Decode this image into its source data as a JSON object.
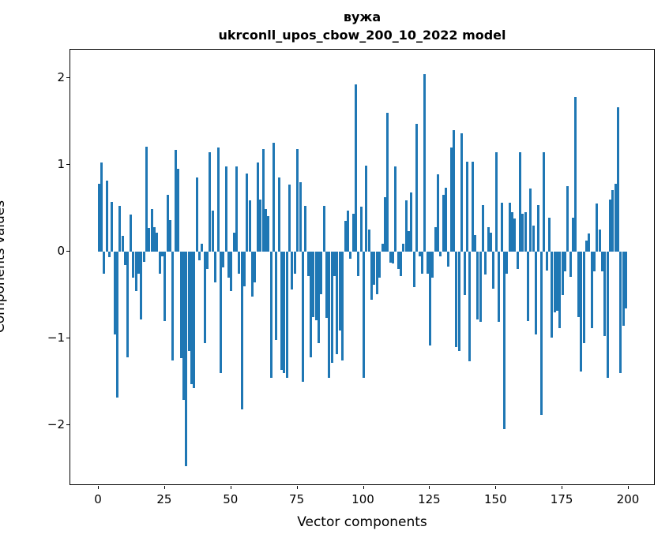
{
  "title": {
    "line1": "вужа",
    "line2": "ukrconll_upos_cbow_200_10_2022 model"
  },
  "chart_data": {
    "type": "bar",
    "title": "вужа",
    "subtitle": "ukrconll_upos_cbow_200_10_2022 model",
    "xlabel": "Vector components",
    "ylabel": "Components values",
    "bar_color": "#1f77b4",
    "xlim": [
      -10.7,
      209.7
    ],
    "ylim": [
      -2.7,
      2.33
    ],
    "xticks": [
      0,
      25,
      50,
      75,
      100,
      125,
      150,
      175,
      200
    ],
    "yticks": [
      "2",
      "1",
      "0",
      "−1",
      "−2"
    ],
    "ytick_values": [
      2,
      1,
      0,
      -1,
      -2
    ],
    "grid": false,
    "legend": null,
    "x_start": 0,
    "values": [
      0.78,
      1.03,
      -0.25,
      0.82,
      -0.06,
      0.57,
      -0.95,
      -1.68,
      0.53,
      0.18,
      -0.15,
      -1.22,
      0.43,
      -0.3,
      -0.45,
      -0.25,
      -0.78,
      -0.12,
      1.21,
      0.27,
      0.49,
      0.28,
      0.22,
      -0.25,
      -0.05,
      -0.8,
      0.65,
      0.36,
      -1.25,
      1.17,
      0.95,
      -1.23,
      -1.71,
      -2.47,
      -1.15,
      -1.53,
      -1.57,
      0.85,
      -0.1,
      0.09,
      -1.05,
      -0.2,
      1.15,
      0.47,
      -0.35,
      1.2,
      -1.4,
      -0.18,
      0.98,
      -0.3,
      -0.45,
      0.22,
      0.98,
      -0.25,
      -1.82,
      -0.4,
      0.9,
      0.59,
      -0.52,
      -0.35,
      1.03,
      0.6,
      1.18,
      0.49,
      0.41,
      -1.45,
      1.25,
      -1.02,
      0.85,
      -1.36,
      -1.4,
      -1.45,
      0.77,
      -0.44,
      -0.25,
      1.18,
      0.8,
      -1.5,
      0.53,
      -0.28,
      -1.22,
      -0.75,
      -0.79,
      -1.05,
      -0.49,
      0.53,
      -0.76,
      -1.45,
      -1.28,
      -0.28,
      -1.18,
      -0.91,
      -1.25,
      0.35,
      0.47,
      -0.08,
      0.44,
      1.93,
      -0.28,
      0.52,
      -1.45,
      0.99,
      0.25,
      -0.55,
      -0.38,
      -0.49,
      -0.3,
      0.09,
      0.63,
      1.6,
      -0.13,
      -0.14,
      0.98,
      -0.2,
      -0.28,
      0.09,
      0.59,
      0.24,
      0.68,
      -0.41,
      1.47,
      -0.05,
      -0.25,
      2.05,
      -0.25,
      -1.08,
      -0.3,
      0.28,
      0.89,
      -0.05,
      0.65,
      0.74,
      -0.17,
      1.2,
      1.4,
      -1.1,
      -1.15,
      1.36,
      -0.5,
      1.04,
      -1.26,
      1.04,
      0.19,
      -0.78,
      -0.81,
      0.54,
      -0.26,
      0.28,
      0.22,
      -0.43,
      1.15,
      -0.81,
      0.56,
      -2.05,
      -0.25,
      0.56,
      0.45,
      0.38,
      -0.2,
      1.15,
      0.44,
      0.45,
      -0.8,
      0.73,
      0.3,
      -0.95,
      0.54,
      -1.88,
      1.15,
      -0.22,
      0.39,
      -0.99,
      -0.7,
      -0.68,
      -0.88,
      -0.5,
      -0.23,
      0.75,
      -0.29,
      0.39,
      1.78,
      -0.75,
      -1.38,
      -1.05,
      0.13,
      0.21,
      -0.88,
      -0.23,
      0.55,
      0.25,
      -0.23,
      -0.97,
      -1.45,
      0.6,
      0.71,
      0.78,
      1.66,
      -1.4,
      -0.85,
      -0.65
    ]
  }
}
